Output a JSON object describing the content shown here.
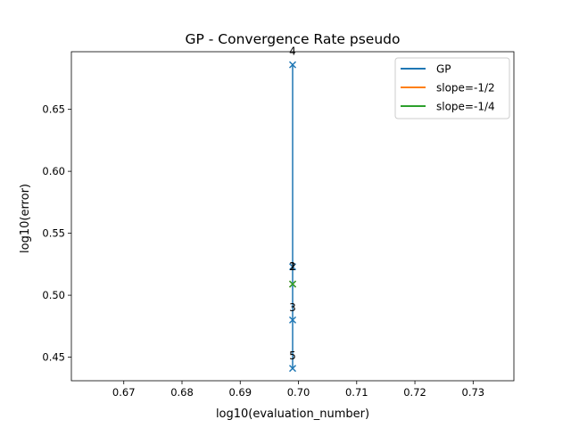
{
  "chart_data": {
    "type": "line",
    "title": "GP - Convergence Rate pseudo",
    "xlabel": "log10(evaluation_number)",
    "ylabel": "log10(error)",
    "xlim": [
      0.661,
      0.737
    ],
    "ylim": [
      0.431,
      0.6965
    ],
    "xticks": [
      "0.67",
      "0.68",
      "0.69",
      "0.70",
      "0.71",
      "0.72",
      "0.73"
    ],
    "yticks": [
      "0.45",
      "0.50",
      "0.55",
      "0.60",
      "0.65"
    ],
    "grid": false,
    "legend_position": "top-right",
    "series": [
      {
        "name": "GP",
        "color": "#1f77b4",
        "marker": "x",
        "x": [
          0.699,
          0.699,
          0.699,
          0.699,
          0.699
        ],
        "y": [
          0.509,
          0.523,
          0.48,
          0.686,
          0.441
        ]
      },
      {
        "name": "slope=-1/2",
        "color": "#ff7f0e",
        "marker": "x",
        "x": [
          0.699
        ],
        "y": [
          0.509
        ]
      },
      {
        "name": "slope=-1/4",
        "color": "#2ca02c",
        "marker": "x",
        "x": [
          0.699
        ],
        "y": [
          0.509
        ]
      }
    ],
    "annotations": [
      {
        "text": "1",
        "x": 0.699,
        "y": 0.523
      },
      {
        "text": "2",
        "x": 0.699,
        "y": 0.523
      },
      {
        "text": "3",
        "x": 0.699,
        "y": 0.49
      },
      {
        "text": "4",
        "x": 0.699,
        "y": 0.697
      },
      {
        "text": "5",
        "x": 0.699,
        "y": 0.451
      }
    ]
  }
}
